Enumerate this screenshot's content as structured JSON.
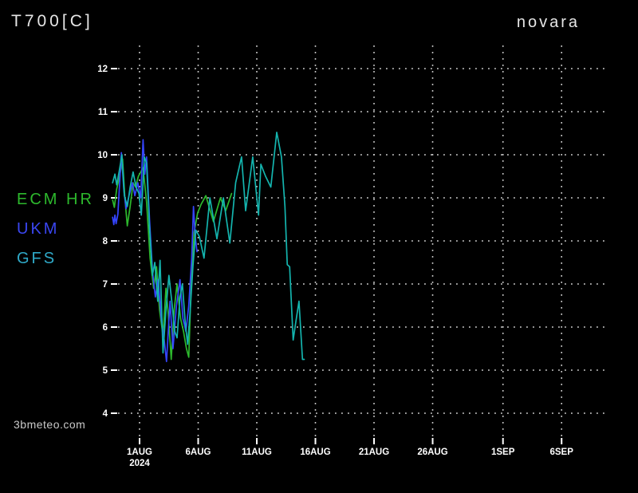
{
  "header": {
    "title": "T700[C]",
    "location": "novara"
  },
  "watermark": "3bmeteo.com",
  "colors": {
    "background": "#000000",
    "grid": "#d4d4d4",
    "axis_text": "#ffffff",
    "title_text": "#e6e6e6",
    "watermark_text": "#c9c9c9"
  },
  "legend": [
    {
      "label": "ECM HR",
      "color": "#2db92d"
    },
    {
      "label": "UKM",
      "color": "#3a46f0"
    },
    {
      "label": "GFS",
      "color": "#2fa9c8"
    }
  ],
  "chart_data": {
    "type": "line",
    "title": "T700[C]",
    "subtitle": "novara",
    "xlabel": "",
    "ylabel": "",
    "grid": "dotted",
    "legend_position": "left-middle",
    "ylim": [
      4,
      12
    ],
    "y_ticks": [
      12,
      11,
      10,
      9,
      8,
      7,
      6,
      5,
      4
    ],
    "x_ticks": [
      {
        "label": "1AUG",
        "sublabel": "2024",
        "day": 0
      },
      {
        "label": "6AUG",
        "sublabel": "",
        "day": 5
      },
      {
        "label": "11AUG",
        "sublabel": "",
        "day": 10
      },
      {
        "label": "16AUG",
        "sublabel": "",
        "day": 15
      },
      {
        "label": "21AUG",
        "sublabel": "",
        "day": 20
      },
      {
        "label": "26AUG",
        "sublabel": "",
        "day": 25
      },
      {
        "label": "1SEP",
        "sublabel": "",
        "day": 31
      },
      {
        "label": "6SEP",
        "sublabel": "",
        "day": 36
      }
    ],
    "x_unit": "days from 1 AUG 2024 00:00",
    "series": [
      {
        "name": "ECM HR",
        "color": "#2db92d",
        "points": [
          [
            -2.3,
            8.95
          ],
          [
            -2.15,
            8.78
          ],
          [
            -1.95,
            9.2
          ],
          [
            -1.7,
            9.5
          ],
          [
            -1.45,
            9.9
          ],
          [
            -1.25,
            9.0
          ],
          [
            -1.05,
            8.35
          ],
          [
            -0.8,
            8.8
          ],
          [
            -0.55,
            9.35
          ],
          [
            -0.35,
            9.25
          ],
          [
            -0.1,
            9.5
          ],
          [
            0.3,
            9.7
          ],
          [
            0.6,
            8.9
          ],
          [
            0.9,
            7.6
          ],
          [
            1.2,
            6.9
          ],
          [
            1.45,
            7.4
          ],
          [
            1.7,
            6.4
          ],
          [
            2.0,
            5.8
          ],
          [
            2.25,
            6.9
          ],
          [
            2.45,
            6.3
          ],
          [
            2.7,
            5.25
          ],
          [
            2.95,
            6.4
          ],
          [
            3.2,
            7.0
          ],
          [
            3.5,
            6.2
          ],
          [
            3.75,
            5.9
          ],
          [
            4.0,
            5.5
          ],
          [
            4.2,
            5.3
          ],
          [
            4.4,
            7.0
          ],
          [
            4.65,
            8.2
          ],
          [
            4.95,
            8.65
          ],
          [
            5.25,
            8.85
          ],
          [
            5.65,
            9.05
          ],
          [
            6.3,
            8.45
          ],
          [
            6.9,
            9.0
          ],
          [
            7.35,
            8.7
          ],
          [
            7.85,
            9.1
          ]
        ]
      },
      {
        "name": "UKM",
        "color": "#3545ff",
        "points": [
          [
            -2.3,
            8.55
          ],
          [
            -2.2,
            8.38
          ],
          [
            -2.1,
            8.6
          ],
          [
            -2.0,
            8.4
          ],
          [
            -1.85,
            8.62
          ],
          [
            -1.55,
            10.05
          ],
          [
            -1.35,
            9.2
          ],
          [
            -1.15,
            8.75
          ],
          [
            -0.9,
            9.05
          ],
          [
            -0.6,
            9.35
          ],
          [
            -0.4,
            9.05
          ],
          [
            -0.15,
            9.35
          ],
          [
            0.1,
            9.0
          ],
          [
            0.3,
            10.35
          ],
          [
            0.45,
            9.55
          ],
          [
            0.6,
            9.95
          ],
          [
            0.85,
            8.5
          ],
          [
            1.1,
            7.3
          ],
          [
            1.35,
            6.7
          ],
          [
            1.6,
            7.1
          ],
          [
            1.85,
            6.2
          ],
          [
            2.1,
            5.7
          ],
          [
            2.3,
            5.2
          ],
          [
            2.6,
            6.6
          ],
          [
            2.85,
            5.5
          ],
          [
            3.15,
            6.5
          ],
          [
            3.45,
            7.1
          ],
          [
            3.7,
            6.2
          ],
          [
            3.95,
            5.9
          ],
          [
            4.2,
            6.5
          ],
          [
            4.45,
            7.6
          ],
          [
            4.6,
            8.8
          ],
          [
            4.75,
            8.1
          ],
          [
            4.9,
            7.75
          ]
        ]
      },
      {
        "name": "GFS",
        "color": "#14b4ae",
        "points": [
          [
            -2.3,
            9.35
          ],
          [
            -2.1,
            9.55
          ],
          [
            -1.95,
            9.3
          ],
          [
            -1.75,
            9.6
          ],
          [
            -1.5,
            10.0
          ],
          [
            -1.3,
            9.05
          ],
          [
            -1.05,
            8.8
          ],
          [
            -0.8,
            9.25
          ],
          [
            -0.55,
            9.6
          ],
          [
            -0.3,
            9.25
          ],
          [
            -0.05,
            9.1
          ],
          [
            0.15,
            8.6
          ],
          [
            0.4,
            9.95
          ],
          [
            0.6,
            9.8
          ],
          [
            0.85,
            8.3
          ],
          [
            1.1,
            7.2
          ],
          [
            1.3,
            7.5
          ],
          [
            1.55,
            6.6
          ],
          [
            1.75,
            7.55
          ],
          [
            2.0,
            5.4
          ],
          [
            2.25,
            6.4
          ],
          [
            2.5,
            7.2
          ],
          [
            2.75,
            6.6
          ],
          [
            3.0,
            5.9
          ],
          [
            3.2,
            5.75
          ],
          [
            3.45,
            6.7
          ],
          [
            3.65,
            7.0
          ],
          [
            3.9,
            6.1
          ],
          [
            4.1,
            5.6
          ],
          [
            4.3,
            6.3
          ],
          [
            4.55,
            7.4
          ],
          [
            4.8,
            8.25
          ],
          [
            5.1,
            8.1
          ],
          [
            5.5,
            7.6
          ],
          [
            6.0,
            9.0
          ],
          [
            6.6,
            8.05
          ],
          [
            7.15,
            9.0
          ],
          [
            7.7,
            7.95
          ],
          [
            8.2,
            9.35
          ],
          [
            8.7,
            9.95
          ],
          [
            9.05,
            8.7
          ],
          [
            9.65,
            9.95
          ],
          [
            10.15,
            8.6
          ],
          [
            10.35,
            9.78
          ],
          [
            10.75,
            9.5
          ],
          [
            11.2,
            9.25
          ],
          [
            11.7,
            10.52
          ],
          [
            12.1,
            9.95
          ],
          [
            12.4,
            8.8
          ],
          [
            12.6,
            7.45
          ],
          [
            12.8,
            7.4
          ],
          [
            13.1,
            5.7
          ],
          [
            13.35,
            6.15
          ],
          [
            13.6,
            6.6
          ],
          [
            13.9,
            5.25
          ],
          [
            14.05,
            5.25
          ]
        ]
      }
    ]
  }
}
